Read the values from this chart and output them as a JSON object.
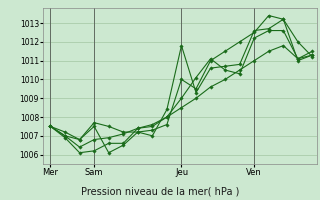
{
  "background_color": "#cce8d0",
  "grid_color": "#aaccaa",
  "line_color": "#1a6b1a",
  "title": "Pression niveau de la mer( hPa )",
  "ylim": [
    1005.5,
    1013.8
  ],
  "yticks": [
    1006,
    1007,
    1008,
    1009,
    1010,
    1011,
    1012,
    1013
  ],
  "day_labels": [
    "Mer",
    "Sam",
    "Jeu",
    "Ven"
  ],
  "day_positions": [
    0,
    3,
    9,
    14
  ],
  "n_points": 19,
  "series": [
    [
      1007.5,
      1007.0,
      1006.8,
      1007.5,
      1006.1,
      1006.5,
      1007.2,
      1007.3,
      1007.6,
      1010.0,
      1009.5,
      1011.0,
      1011.5,
      1012.0,
      1012.5,
      1013.4,
      1013.2,
      1011.0,
      1011.3
    ],
    [
      1007.5,
      1006.9,
      1006.1,
      1006.2,
      1006.6,
      1006.6,
      1007.4,
      1007.5,
      1008.0,
      1009.0,
      1010.1,
      1011.1,
      1010.5,
      1010.3,
      1012.2,
      1012.6,
      1012.6,
      1011.1,
      1011.5
    ],
    [
      1007.5,
      1007.2,
      1006.8,
      1007.7,
      1007.5,
      1007.2,
      1007.2,
      1007.0,
      1008.4,
      1011.8,
      1009.3,
      1010.6,
      1010.7,
      1010.8,
      1012.6,
      1012.7,
      1013.2,
      1012.0,
      1011.2
    ],
    [
      1007.5,
      1007.0,
      1006.4,
      1006.8,
      1006.9,
      1007.1,
      1007.4,
      1007.6,
      1008.0,
      1008.5,
      1009.0,
      1009.6,
      1010.0,
      1010.5,
      1011.0,
      1011.5,
      1011.8,
      1011.1,
      1011.3
    ]
  ]
}
